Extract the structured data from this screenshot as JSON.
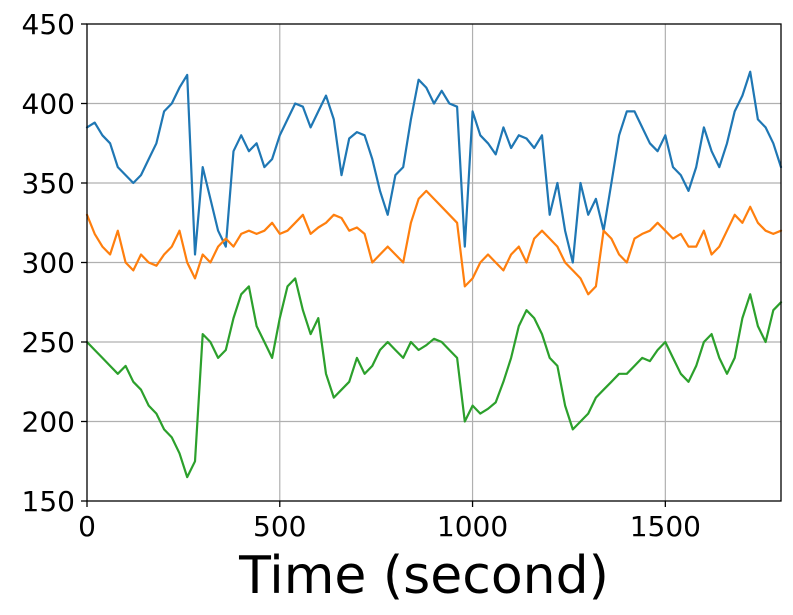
{
  "chart_data": {
    "type": "line",
    "title": "",
    "xlabel": "Time (second)",
    "ylabel": "",
    "xlim": [
      0,
      1800
    ],
    "ylim": [
      150,
      450
    ],
    "xticks": [
      0,
      500,
      1000,
      1500
    ],
    "yticks": [
      150,
      200,
      250,
      300,
      350,
      400,
      450
    ],
    "grid": true,
    "series": [
      {
        "color": "#1f77b4",
        "x": [
          0,
          20,
          40,
          60,
          80,
          100,
          120,
          140,
          160,
          180,
          200,
          220,
          240,
          260,
          280,
          300,
          320,
          340,
          360,
          380,
          400,
          420,
          440,
          460,
          480,
          500,
          520,
          540,
          560,
          580,
          600,
          620,
          640,
          660,
          680,
          700,
          720,
          740,
          760,
          780,
          800,
          820,
          840,
          860,
          880,
          900,
          920,
          940,
          960,
          980,
          1000,
          1020,
          1040,
          1060,
          1080,
          1100,
          1120,
          1140,
          1160,
          1180,
          1200,
          1220,
          1240,
          1260,
          1280,
          1300,
          1320,
          1340,
          1360,
          1380,
          1400,
          1420,
          1440,
          1460,
          1480,
          1500,
          1520,
          1540,
          1560,
          1580,
          1600,
          1620,
          1640,
          1660,
          1680,
          1700,
          1720,
          1740,
          1760,
          1780,
          1800
        ],
        "y": [
          385,
          388,
          380,
          375,
          360,
          355,
          350,
          355,
          365,
          375,
          395,
          400,
          410,
          418,
          305,
          360,
          340,
          320,
          310,
          370,
          380,
          370,
          375,
          360,
          365,
          380,
          390,
          400,
          398,
          385,
          395,
          405,
          390,
          355,
          378,
          382,
          380,
          365,
          345,
          330,
          355,
          360,
          390,
          415,
          410,
          400,
          408,
          400,
          398,
          310,
          395,
          380,
          375,
          368,
          385,
          372,
          380,
          378,
          372,
          380,
          330,
          350,
          320,
          300,
          350,
          330,
          340,
          320,
          350,
          380,
          395,
          395,
          385,
          375,
          370,
          380,
          360,
          355,
          345,
          360,
          385,
          370,
          360,
          375,
          395,
          405,
          420,
          390,
          385,
          375,
          360
        ]
      },
      {
        "color": "#ff7f0e",
        "x": [
          0,
          20,
          40,
          60,
          80,
          100,
          120,
          140,
          160,
          180,
          200,
          220,
          240,
          260,
          280,
          300,
          320,
          340,
          360,
          380,
          400,
          420,
          440,
          460,
          480,
          500,
          520,
          540,
          560,
          580,
          600,
          620,
          640,
          660,
          680,
          700,
          720,
          740,
          760,
          780,
          800,
          820,
          840,
          860,
          880,
          900,
          920,
          940,
          960,
          980,
          1000,
          1020,
          1040,
          1060,
          1080,
          1100,
          1120,
          1140,
          1160,
          1180,
          1200,
          1220,
          1240,
          1260,
          1280,
          1300,
          1320,
          1340,
          1360,
          1380,
          1400,
          1420,
          1440,
          1460,
          1480,
          1500,
          1520,
          1540,
          1560,
          1580,
          1600,
          1620,
          1640,
          1660,
          1680,
          1700,
          1720,
          1740,
          1760,
          1780,
          1800
        ],
        "y": [
          330,
          318,
          310,
          305,
          320,
          300,
          295,
          305,
          300,
          298,
          305,
          310,
          320,
          300,
          290,
          305,
          300,
          310,
          315,
          310,
          318,
          320,
          318,
          320,
          325,
          318,
          320,
          325,
          330,
          318,
          322,
          325,
          330,
          328,
          320,
          322,
          318,
          300,
          305,
          310,
          305,
          300,
          325,
          340,
          345,
          340,
          335,
          330,
          325,
          285,
          290,
          300,
          305,
          300,
          295,
          305,
          310,
          300,
          315,
          320,
          315,
          310,
          300,
          295,
          290,
          280,
          285,
          320,
          315,
          305,
          300,
          315,
          318,
          320,
          325,
          320,
          315,
          318,
          310,
          310,
          320,
          305,
          310,
          320,
          330,
          325,
          335,
          325,
          320,
          318,
          320
        ]
      },
      {
        "color": "#2ca02c",
        "x": [
          0,
          20,
          40,
          60,
          80,
          100,
          120,
          140,
          160,
          180,
          200,
          220,
          240,
          260,
          280,
          300,
          320,
          340,
          360,
          380,
          400,
          420,
          440,
          460,
          480,
          500,
          520,
          540,
          560,
          580,
          600,
          620,
          640,
          660,
          680,
          700,
          720,
          740,
          760,
          780,
          800,
          820,
          840,
          860,
          880,
          900,
          920,
          940,
          960,
          980,
          1000,
          1020,
          1040,
          1060,
          1080,
          1100,
          1120,
          1140,
          1160,
          1180,
          1200,
          1220,
          1240,
          1260,
          1280,
          1300,
          1320,
          1340,
          1360,
          1380,
          1400,
          1420,
          1440,
          1460,
          1480,
          1500,
          1520,
          1540,
          1560,
          1580,
          1600,
          1620,
          1640,
          1660,
          1680,
          1700,
          1720,
          1740,
          1760,
          1780,
          1800
        ],
        "y": [
          250,
          245,
          240,
          235,
          230,
          235,
          225,
          220,
          210,
          205,
          195,
          190,
          180,
          165,
          175,
          255,
          250,
          240,
          245,
          265,
          280,
          285,
          260,
          250,
          240,
          265,
          285,
          290,
          270,
          255,
          265,
          230,
          215,
          220,
          225,
          240,
          230,
          235,
          245,
          250,
          245,
          240,
          250,
          245,
          248,
          252,
          250,
          245,
          240,
          200,
          210,
          205,
          208,
          212,
          225,
          240,
          260,
          270,
          265,
          255,
          240,
          235,
          210,
          195,
          200,
          205,
          215,
          220,
          225,
          230,
          230,
          235,
          240,
          238,
          245,
          250,
          240,
          230,
          225,
          235,
          250,
          255,
          240,
          230,
          240,
          265,
          280,
          260,
          250,
          270,
          275
        ]
      }
    ]
  }
}
